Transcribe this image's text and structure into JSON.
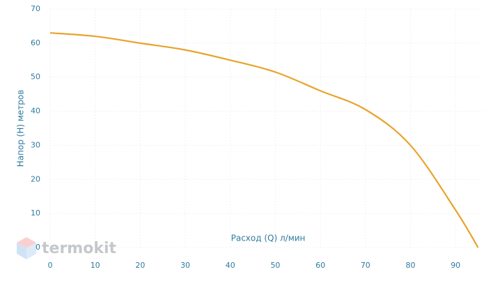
{
  "chart_data": {
    "type": "line",
    "x_label": "Расход (Q) л/мин",
    "y_label": "Напор (Н) метров",
    "watermark": "termokit",
    "x": [
      0,
      10,
      20,
      30,
      40,
      50,
      60,
      70,
      80,
      90,
      95
    ],
    "series": [
      {
        "name": "Напор",
        "color": "#e8a32c",
        "values": [
          63,
          62,
          60,
          58,
          55,
          51.5,
          46,
          40.5,
          30,
          11,
          0
        ]
      }
    ],
    "xlim": [
      0,
      96
    ],
    "xticks": [
      0,
      10,
      20,
      30,
      40,
      50,
      60,
      70,
      80,
      90
    ],
    "ylim": [
      0,
      70
    ],
    "yticks": [
      0,
      10,
      20,
      30,
      40,
      50,
      60,
      70
    ],
    "grid": true
  }
}
